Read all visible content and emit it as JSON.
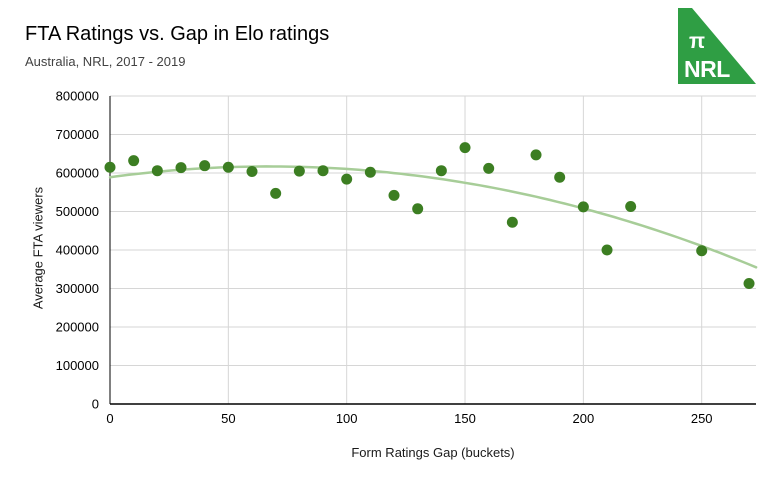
{
  "header": {
    "title": "FTA Ratings vs. Gap in Elo ratings",
    "subtitle": "Australia, NRL, 2017 - 2019"
  },
  "logo": {
    "pi_symbol": "π",
    "text": "NRL",
    "color": "#2f9e44",
    "text_color": "#ffffff"
  },
  "chart_data": {
    "type": "scatter",
    "title": "FTA Ratings vs. Gap in Elo ratings",
    "subtitle": "Australia, NRL, 2017 - 2019",
    "xlabel": "Form Ratings Gap (buckets)",
    "ylabel": "Average FTA viewers",
    "xlim": [
      0,
      273
    ],
    "ylim": [
      0,
      800000
    ],
    "x_ticks": [
      0,
      50,
      100,
      150,
      200,
      250
    ],
    "y_ticks": [
      0,
      100000,
      200000,
      300000,
      400000,
      500000,
      600000,
      700000,
      800000
    ],
    "grid": true,
    "legend": "none",
    "point_color": "#3c7e22",
    "grid_color": "#d6d6d6",
    "axis_color": "#000000",
    "tick_label_color": "#000000",
    "points": [
      {
        "x": 0,
        "y": 615000
      },
      {
        "x": 10,
        "y": 632000
      },
      {
        "x": 20,
        "y": 606000
      },
      {
        "x": 30,
        "y": 614000
      },
      {
        "x": 40,
        "y": 619000
      },
      {
        "x": 50,
        "y": 615000
      },
      {
        "x": 60,
        "y": 604000
      },
      {
        "x": 70,
        "y": 547000
      },
      {
        "x": 80,
        "y": 605000
      },
      {
        "x": 90,
        "y": 606000
      },
      {
        "x": 100,
        "y": 584000
      },
      {
        "x": 110,
        "y": 602000
      },
      {
        "x": 120,
        "y": 542000
      },
      {
        "x": 130,
        "y": 507000
      },
      {
        "x": 140,
        "y": 606000
      },
      {
        "x": 150,
        "y": 666000
      },
      {
        "x": 160,
        "y": 612000
      },
      {
        "x": 170,
        "y": 472000
      },
      {
        "x": 180,
        "y": 647000
      },
      {
        "x": 190,
        "y": 589000
      },
      {
        "x": 200,
        "y": 512000
      },
      {
        "x": 210,
        "y": 400000
      },
      {
        "x": 220,
        "y": 513000
      },
      {
        "x": 250,
        "y": 398000
      },
      {
        "x": 270,
        "y": 313000
      }
    ],
    "trendline": {
      "type": "quadratic",
      "color": "#a7cd98",
      "coefficients": {
        "a": 589000,
        "b": 833,
        "c": -6.19
      },
      "x_range": [
        0,
        273
      ]
    }
  }
}
